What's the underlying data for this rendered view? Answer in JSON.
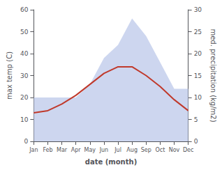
{
  "chart_data": {
    "type": "line",
    "xlabel": "date (month)",
    "ylabel": "max temp (C)",
    "y2label": "med. precipitation (kg/m2)",
    "categories": [
      "Jan",
      "Feb",
      "Mar",
      "Apr",
      "May",
      "Jun",
      "Jul",
      "Aug",
      "Sep",
      "Oct",
      "Nov",
      "Dec"
    ],
    "series": [
      {
        "type": "area",
        "color": "#b8c4e8",
        "axis": "y2",
        "values": [
          10,
          10,
          10,
          10,
          13,
          19,
          22,
          28,
          24,
          18,
          12,
          12
        ]
      },
      {
        "type": "line",
        "color": "#c0392b",
        "values": [
          13,
          14,
          17,
          21,
          26,
          31,
          34,
          34,
          30,
          25,
          19,
          14
        ]
      }
    ],
    "ylim": [
      0,
      60
    ],
    "yticks": [
      0,
      10,
      20,
      30,
      40,
      50,
      60
    ],
    "y2lim": [
      0,
      30
    ],
    "y2ticks": [
      0,
      5,
      10,
      15,
      20,
      25,
      30
    ],
    "grid": false
  }
}
